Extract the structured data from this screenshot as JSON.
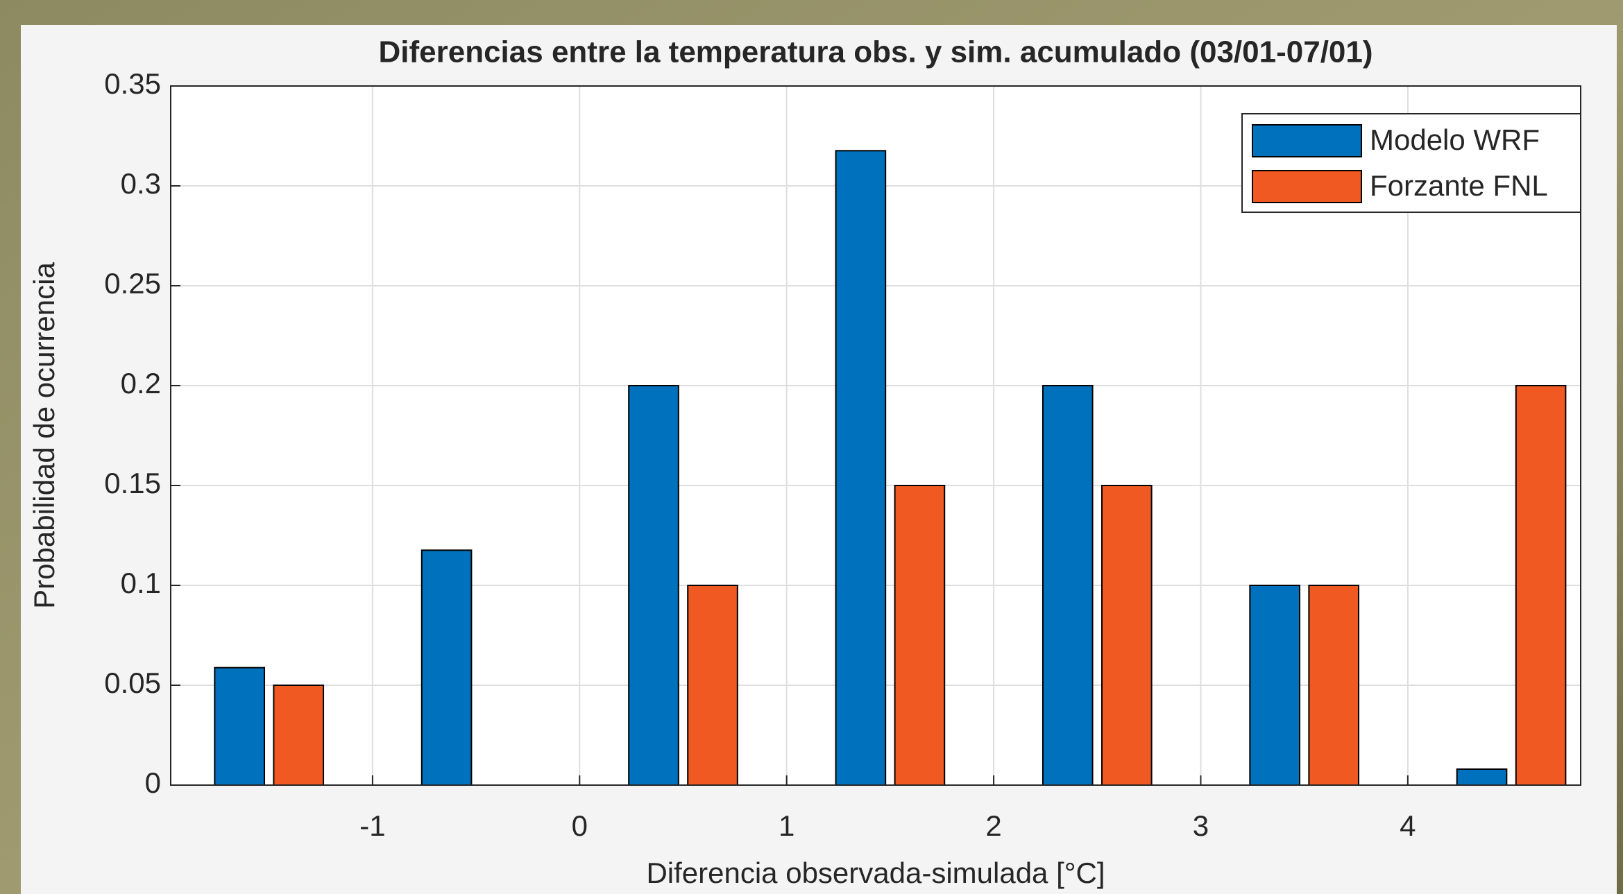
{
  "chart_data": {
    "type": "bar",
    "title": "Diferencias entre la temperatura obs. y sim. acumulado (03/01-07/01)",
    "x_label": "Diferencia observada-simulada [°C]",
    "y_label": "Probabilidad de ocurrencia",
    "x": [
      -1.5,
      -0.5,
      0.5,
      1.5,
      2.5,
      3.5,
      4.5
    ],
    "series": [
      {
        "name": "Modelo WRF",
        "color": "#0072bd",
        "values": [
          0.0588,
          0.1176,
          0.2,
          0.3176,
          0.2,
          0.1,
          0.008
        ]
      },
      {
        "name": "Forzante FNL",
        "color": "#f05a22",
        "values": [
          0.05,
          0,
          0.1,
          0.15,
          0.15,
          0.1,
          0.2
        ]
      }
    ],
    "xlim": [
      -1.975,
      4.835
    ],
    "xticks": [
      -1,
      0,
      1,
      2,
      3,
      4
    ],
    "ylim": [
      0,
      0.35
    ],
    "yticks": [
      0,
      0.05,
      0.1,
      0.15,
      0.2,
      0.25,
      0.3,
      0.35
    ],
    "grid": true,
    "legend": "upper-right"
  }
}
